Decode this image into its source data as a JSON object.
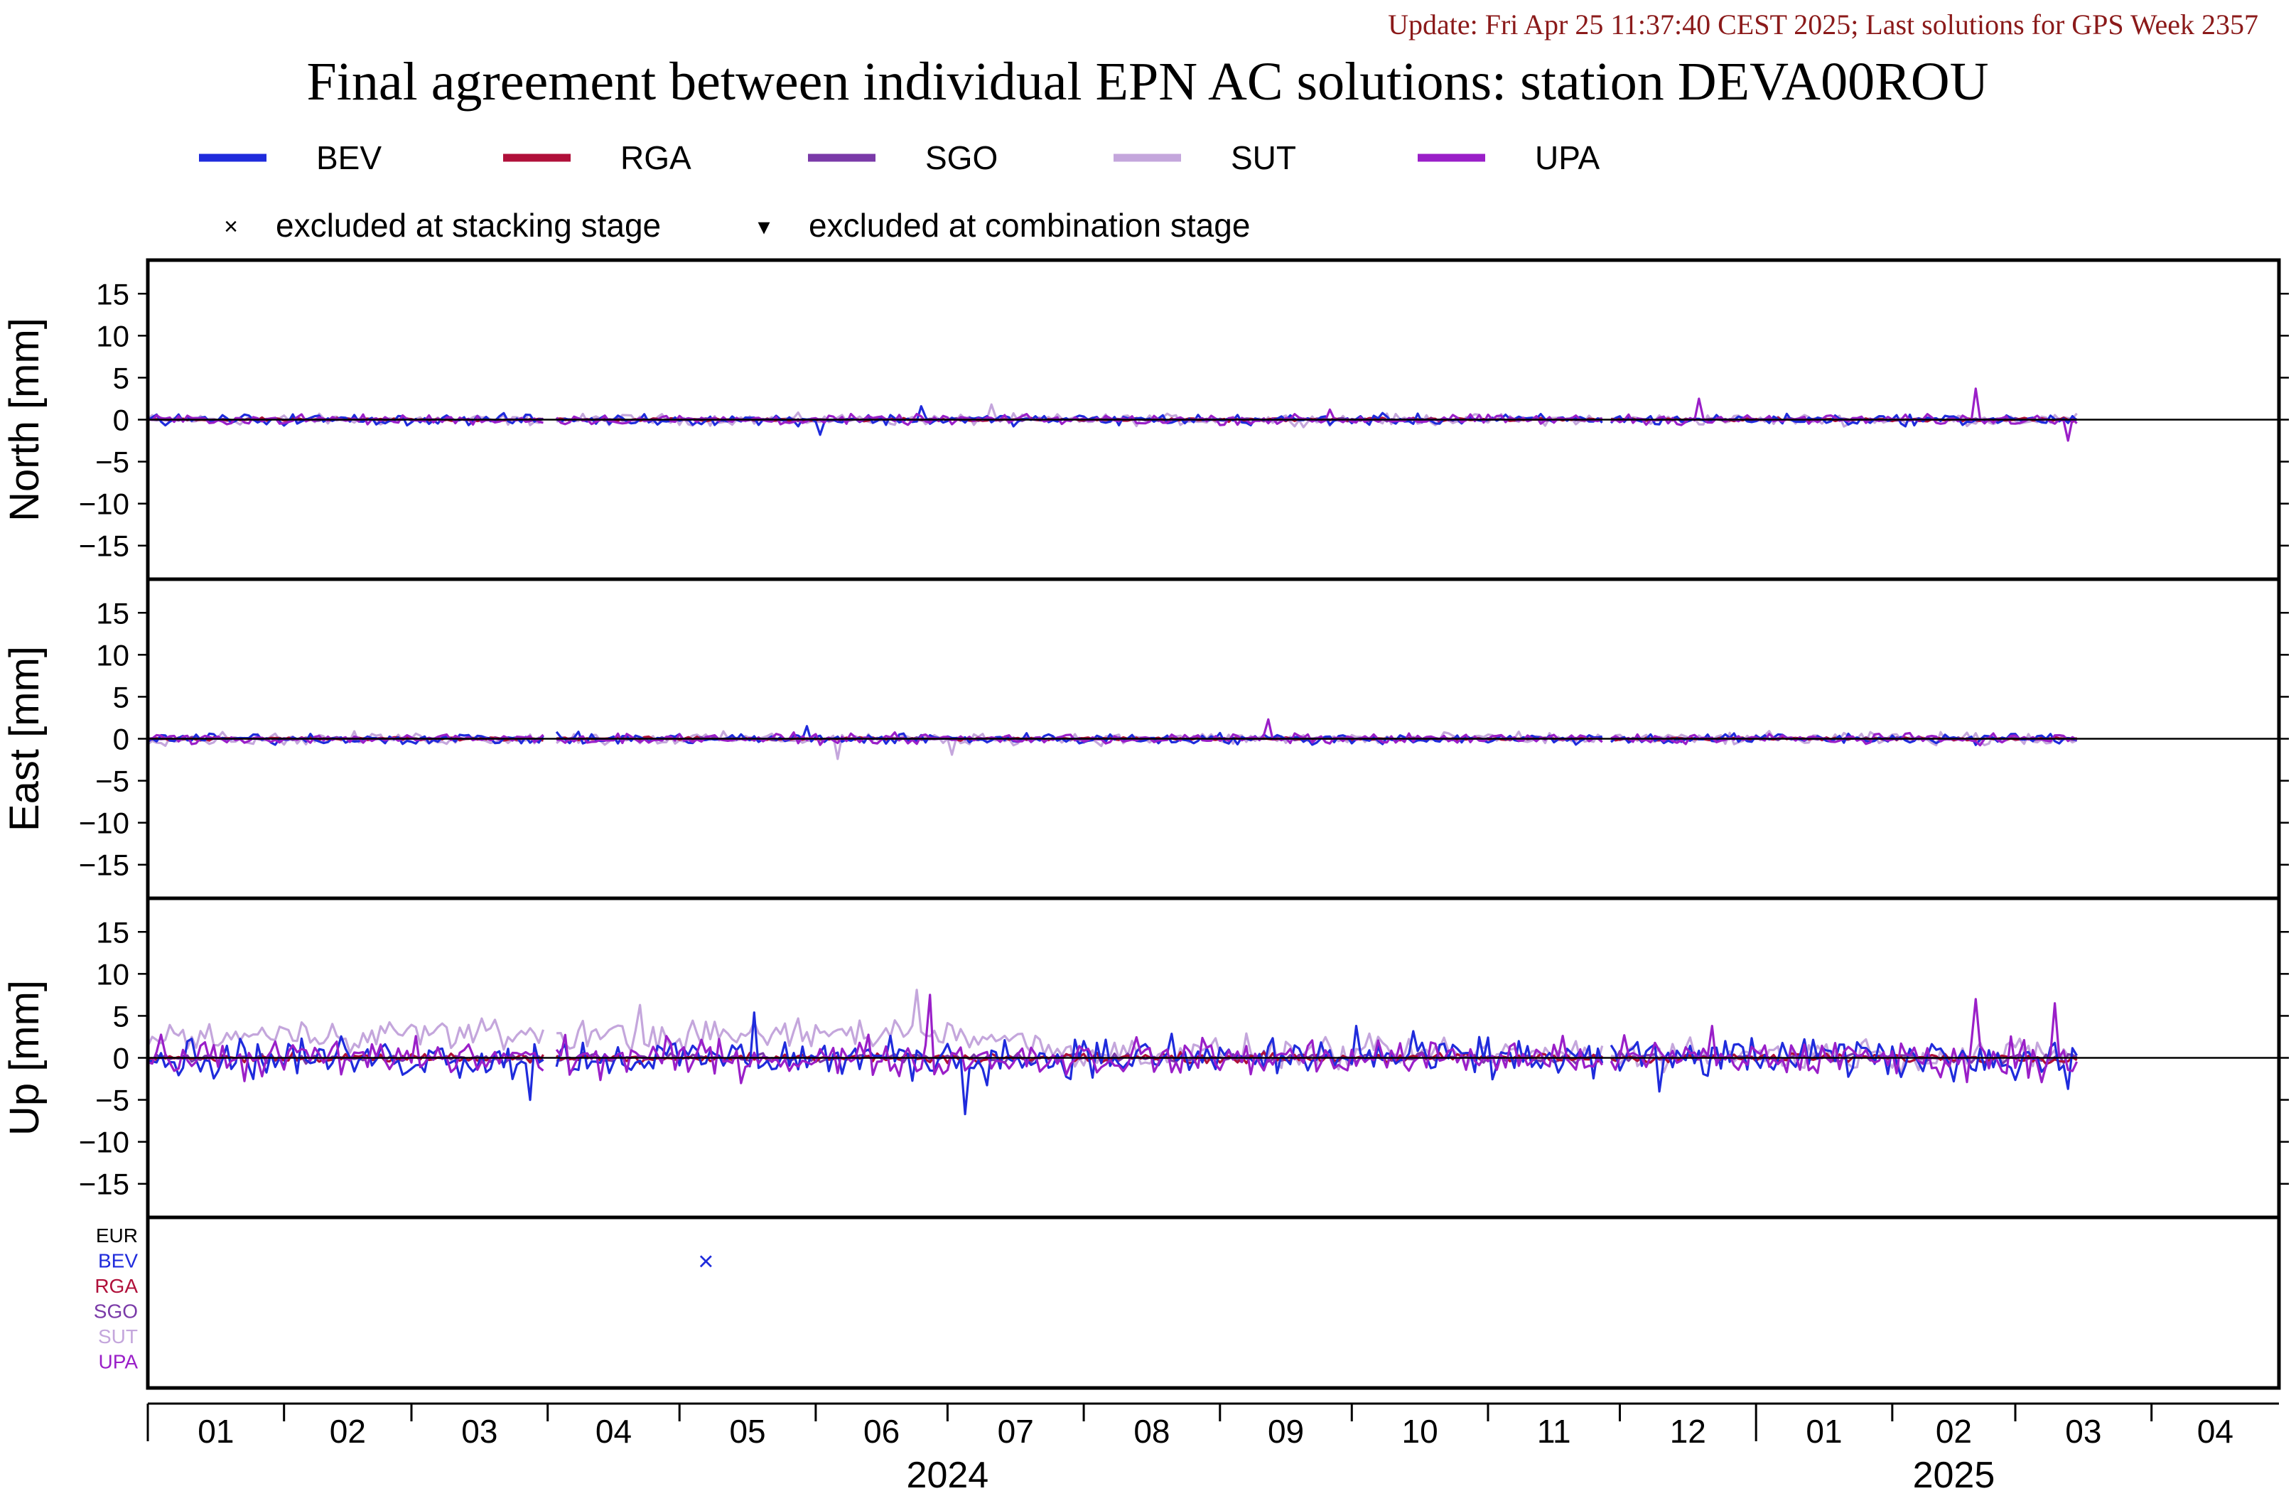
{
  "header": {
    "update_text": "Update: Fri Apr 25 11:37:40 CEST 2025; Last solutions for GPS Week 2357",
    "title": "Final agreement between individual EPN AC solutions: station DEVA00ROU"
  },
  "colors": {
    "update_text": "#8b1a1a",
    "BEV": "#1f2bdc",
    "RGA": "#b0103a",
    "SGO": "#7a3aa8",
    "SUT": "#c4a6dc",
    "UPA": "#9a1fc8",
    "EUR": "#000000"
  },
  "legend": {
    "series": [
      "BEV",
      "RGA",
      "SGO",
      "SUT",
      "UPA"
    ],
    "markers": [
      {
        "symbol": "×",
        "label": "excluded at stacking stage"
      },
      {
        "symbol": "▾",
        "label": "excluded at combination stage"
      }
    ]
  },
  "chart_data": {
    "type": "line",
    "x_unit": "month",
    "x_range": [
      "2024-01-01",
      "2025-04-30"
    ],
    "month_ticks": [
      "01",
      "02",
      "03",
      "04",
      "05",
      "06",
      "07",
      "08",
      "09",
      "10",
      "11",
      "12",
      "01",
      "02",
      "03",
      "04"
    ],
    "year_labels": [
      {
        "label": "2024",
        "month_index": 6
      },
      {
        "label": "2025",
        "month_index": 13.5
      }
    ],
    "y_ticks": [
      15,
      10,
      5,
      0,
      -5,
      -10,
      -15
    ],
    "ylim": [
      -19,
      19
    ],
    "data_end": "2025-03-15",
    "panels": [
      {
        "ylabel": "North [mm]",
        "amplitude": {
          "BEV": 0.45,
          "RGA": 0.15,
          "SGO": 0.12,
          "SUT": 0.45,
          "UPA": 0.4
        },
        "spikes": [
          {
            "series": "UPA",
            "date": "2024-12-19",
            "value": 2.5
          },
          {
            "series": "UPA",
            "date": "2025-02-20",
            "value": 3.7
          },
          {
            "series": "UPA",
            "date": "2025-03-13",
            "value": -2.5
          },
          {
            "series": "SUT",
            "date": "2024-07-11",
            "value": 1.8
          },
          {
            "series": "BEV",
            "date": "2024-06-25",
            "value": 1.6
          },
          {
            "series": "BEV",
            "date": "2024-06-02",
            "value": -1.8
          },
          {
            "series": "UPA",
            "date": "2024-09-26",
            "value": 1.2
          }
        ]
      },
      {
        "ylabel": "East [mm]",
        "amplitude": {
          "BEV": 0.45,
          "RGA": 0.15,
          "SGO": 0.12,
          "SUT": 0.5,
          "UPA": 0.4
        },
        "spikes": [
          {
            "series": "UPA",
            "date": "2024-09-12",
            "value": 2.3
          },
          {
            "series": "SUT",
            "date": "2024-06-06",
            "value": -2.4
          },
          {
            "series": "SUT",
            "date": "2024-07-02",
            "value": -1.9
          },
          {
            "series": "BEV",
            "date": "2024-05-30",
            "value": 1.5
          }
        ]
      },
      {
        "ylabel": "Up [mm]",
        "amplitude": {
          "BEV": 1.7,
          "RGA": 0.4,
          "SGO": 0.4,
          "SUT": 1.3,
          "UPA": 1.6
        },
        "sut_offset": [
          {
            "date": "2024-01-01",
            "value": 2.3
          },
          {
            "date": "2024-03-01",
            "value": 3.0
          },
          {
            "date": "2024-05-01",
            "value": 2.5
          },
          {
            "date": "2024-07-01",
            "value": 3.2
          },
          {
            "date": "2024-08-01",
            "value": 0.6
          },
          {
            "date": "2025-03-15",
            "value": 0.3
          }
        ],
        "spikes": [
          {
            "series": "UPA",
            "date": "2024-06-27",
            "value": 7.5
          },
          {
            "series": "SUT",
            "date": "2024-06-24",
            "value": 8.1
          },
          {
            "series": "BEV",
            "date": "2024-07-05",
            "value": -6.7
          },
          {
            "series": "UPA",
            "date": "2025-02-20",
            "value": 7.0
          },
          {
            "series": "UPA",
            "date": "2025-03-10",
            "value": 6.5
          },
          {
            "series": "BEV",
            "date": "2024-03-28",
            "value": -5.0
          },
          {
            "series": "BEV",
            "date": "2024-12-10",
            "value": -4.0
          },
          {
            "series": "SUT",
            "date": "2024-04-22",
            "value": 6.3
          },
          {
            "series": "BEV",
            "date": "2024-05-18",
            "value": 5.4
          },
          {
            "series": "UPA",
            "date": "2024-12-22",
            "value": 3.8
          },
          {
            "series": "BEV",
            "date": "2024-10-02",
            "value": 3.8
          },
          {
            "series": "BEV",
            "date": "2025-03-13",
            "value": -3.7
          }
        ]
      }
    ],
    "exclusion_rows": [
      "EUR",
      "BEV",
      "RGA",
      "SGO",
      "SUT",
      "UPA"
    ],
    "exclusions": [
      {
        "series": "BEV",
        "date": "2024-05-07",
        "symbol": "×",
        "stage": "stacking"
      }
    ]
  }
}
